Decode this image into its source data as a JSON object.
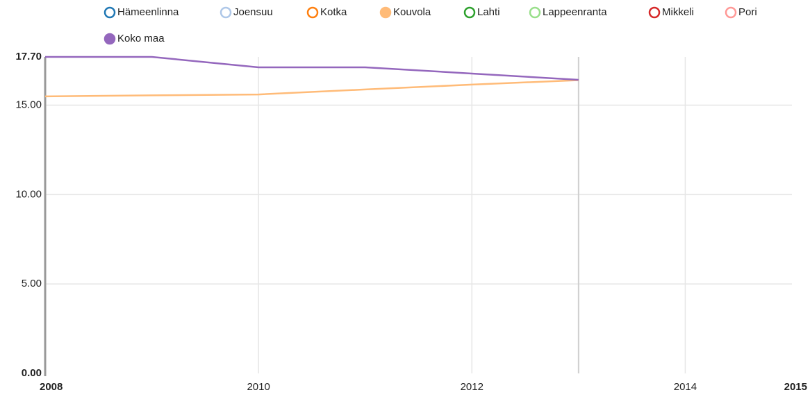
{
  "chart_data": {
    "type": "line",
    "x": [
      2008,
      2009,
      2010,
      2011,
      2012,
      2013
    ],
    "series": [
      {
        "name": "Hämeenlinna",
        "color": "#1f77b4",
        "filled": false,
        "values": [
          null,
          null,
          null,
          null,
          null,
          null
        ]
      },
      {
        "name": "Joensuu",
        "color": "#aec7e8",
        "filled": false,
        "values": [
          null,
          null,
          null,
          null,
          null,
          null
        ]
      },
      {
        "name": "Kotka",
        "color": "#ff7f0e",
        "filled": false,
        "values": [
          null,
          null,
          null,
          null,
          null,
          null
        ]
      },
      {
        "name": "Kouvola",
        "color": "#ffbb78",
        "filled": true,
        "values": [
          15.49,
          15.55,
          15.6,
          15.88,
          16.15,
          16.4
        ]
      },
      {
        "name": "Lahti",
        "color": "#2ca02c",
        "filled": false,
        "values": [
          null,
          null,
          null,
          null,
          null,
          null
        ]
      },
      {
        "name": "Lappeenranta",
        "color": "#98df8a",
        "filled": false,
        "values": [
          null,
          null,
          null,
          null,
          null,
          null
        ]
      },
      {
        "name": "Mikkeli",
        "color": "#d62728",
        "filled": false,
        "values": [
          null,
          null,
          null,
          null,
          null,
          null
        ]
      },
      {
        "name": "Pori",
        "color": "#ff9896",
        "filled": false,
        "values": [
          null,
          null,
          null,
          null,
          null,
          null
        ]
      },
      {
        "name": "Koko maa",
        "color": "#9467bd",
        "filled": true,
        "values": [
          17.7,
          17.7,
          17.12,
          17.12,
          16.77,
          16.42
        ]
      }
    ],
    "xlim": [
      2008,
      2015
    ],
    "xticks": [
      2008,
      2010,
      2012,
      2014,
      2015
    ],
    "ylim": [
      0,
      17.7
    ],
    "yticks": [
      {
        "value": 0,
        "label": "0.00"
      },
      {
        "value": 5,
        "label": "5.00"
      },
      {
        "value": 10,
        "label": "10.00"
      },
      {
        "value": 15,
        "label": "15.00"
      },
      {
        "value": 17.7,
        "label": "17.70"
      }
    ],
    "grid": true
  }
}
